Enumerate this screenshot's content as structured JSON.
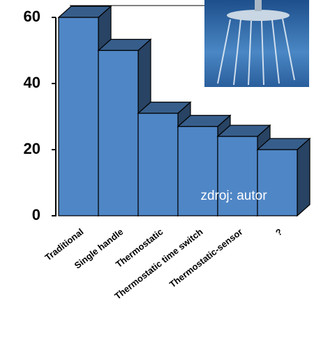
{
  "chart_data": {
    "type": "bar3d",
    "categories": [
      "Traditional",
      "Single handle",
      "Thermostatic",
      "Thermostatic time switch",
      "Thermostatic-sensor",
      "?"
    ],
    "values": [
      60,
      50,
      31,
      27,
      24,
      20
    ],
    "color": "#4f86c6",
    "ylim": [
      0,
      60
    ],
    "yticks": [
      0,
      20,
      40,
      60
    ],
    "annotation": "zdroj: autor"
  }
}
